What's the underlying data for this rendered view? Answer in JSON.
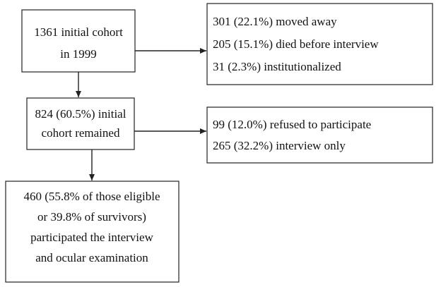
{
  "nodes": [
    {
      "lines": [
        "1361 initial cohort",
        "in 1999"
      ]
    },
    {
      "lines": [
        "301 (22.1%) moved away",
        "205 (15.1%) died before interview",
        "31 (2.3%) institutionalized"
      ]
    },
    {
      "lines": [
        "824 (60.5%) initial",
        "cohort remained"
      ]
    },
    {
      "lines": [
        "99 (12.0%) refused to participate",
        "265 (32.2%) interview only"
      ]
    },
    {
      "lines": [
        "460 (55.8% of those eligible",
        "or 39.8% of survivors)",
        "participated the interview",
        "and ocular examination"
      ]
    }
  ]
}
